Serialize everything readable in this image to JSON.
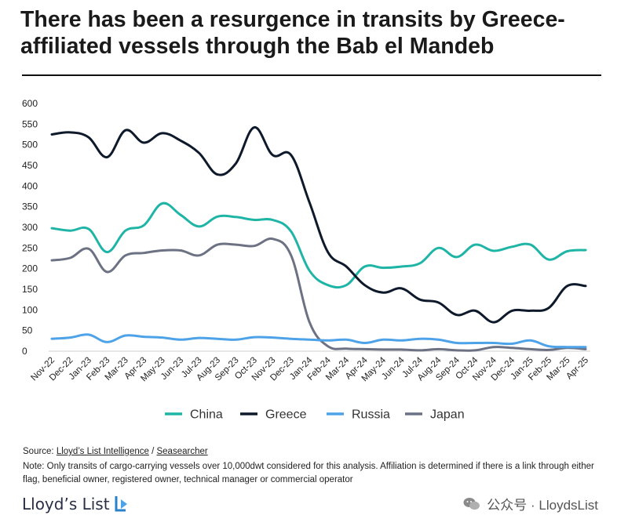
{
  "title": "There has been a resurgence in transits by Greece-affiliated vessels through the Bab el Mandeb",
  "source": {
    "prefix": "Source: ",
    "part1": "Lloyd’s List Intelligence",
    "sep": " / ",
    "part2": "Seasearcher"
  },
  "note": "Note: Only transits of cargo-carrying vessels over 10,000dwt considered for this analysis. Affiliation is determined if there is a link through either flag, beneficial owner, registered owner, technical manager or commercial operator",
  "brand": "Lloyd’s List",
  "watermark": "公众号 · LloydsList",
  "chart_data": {
    "type": "line",
    "categories": [
      "Nov-22",
      "Dec-22",
      "Jan-23",
      "Feb-23",
      "Mar-23",
      "Apr-23",
      "May-23",
      "Jun-23",
      "Jul-23",
      "Aug-23",
      "Sep-23",
      "Oct-23",
      "Nov-23",
      "Dec-23",
      "Jan-24",
      "Feb-24",
      "Mar-24",
      "Apr-24",
      "May-24",
      "Jun-24",
      "Jul-24",
      "Aug-24",
      "Sep-24",
      "Oct-24",
      "Nov-24",
      "Dec-24",
      "Jan-25",
      "Feb-25",
      "Mar-25",
      "Apr-25"
    ],
    "yticks": [
      0,
      50,
      100,
      150,
      200,
      250,
      300,
      350,
      400,
      450,
      500,
      550,
      600
    ],
    "ylim": [
      0,
      600
    ],
    "legend_position": "bottom",
    "series": [
      {
        "name": "China",
        "color": "#1fb5a6",
        "values": [
          298,
          292,
          296,
          240,
          292,
          305,
          358,
          330,
          302,
          326,
          325,
          318,
          318,
          290,
          195,
          160,
          160,
          205,
          202,
          205,
          213,
          250,
          228,
          258,
          243,
          253,
          258,
          222,
          242,
          245
        ]
      },
      {
        "name": "Greece",
        "color": "#0e1a2b",
        "values": [
          525,
          530,
          518,
          470,
          535,
          505,
          528,
          510,
          480,
          428,
          455,
          542,
          475,
          475,
          360,
          240,
          205,
          160,
          142,
          152,
          125,
          118,
          88,
          98,
          70,
          98,
          98,
          105,
          158,
          158
        ]
      },
      {
        "name": "Russia",
        "color": "#4ea3e8",
        "values": [
          30,
          33,
          40,
          22,
          38,
          35,
          33,
          28,
          32,
          30,
          28,
          34,
          33,
          30,
          28,
          26,
          28,
          20,
          28,
          26,
          30,
          28,
          20,
          20,
          20,
          18,
          26,
          12,
          10,
          10
        ]
      },
      {
        "name": "Japan",
        "color": "#6c7283",
        "values": [
          220,
          226,
          248,
          192,
          232,
          238,
          244,
          244,
          232,
          258,
          258,
          255,
          272,
          232,
          70,
          12,
          6,
          5,
          4,
          4,
          2,
          5,
          2,
          2,
          10,
          8,
          5,
          3,
          8,
          5
        ]
      }
    ]
  }
}
